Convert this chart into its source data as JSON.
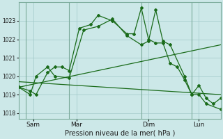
{
  "title": "Pression niveau de la mer( hPa )",
  "background_color": "#cce8e8",
  "grid_color": "#a0c8c8",
  "vline_color": "#7aaa9a",
  "line_color": "#1a6b1a",
  "ylim": [
    1017.7,
    1024.0
  ],
  "yticks": [
    1018,
    1019,
    1020,
    1021,
    1022,
    1023
  ],
  "xlim": [
    0,
    14
  ],
  "xtick_labels": [
    "Sam",
    "Mar",
    "Dim",
    "Lun"
  ],
  "xtick_positions": [
    1.0,
    4.0,
    9.0,
    12.5
  ],
  "vline_positions": [
    0.5,
    3.5,
    8.5,
    12.0
  ],
  "series1_x": [
    0.0,
    0.8,
    1.2,
    2.0,
    2.5,
    3.0,
    3.5,
    4.2,
    5.0,
    5.5,
    6.5,
    7.5,
    8.0,
    8.5,
    9.0,
    9.5,
    10.0,
    10.5,
    11.0,
    11.5,
    12.0,
    12.5,
    13.0,
    13.5,
    14.0
  ],
  "series1_y": [
    1019.4,
    1019.2,
    1019.0,
    1020.2,
    1020.5,
    1020.5,
    1020.3,
    1022.6,
    1022.8,
    1023.3,
    1023.0,
    1022.3,
    1022.3,
    1023.7,
    1022.0,
    1021.8,
    1021.8,
    1020.7,
    1020.5,
    1019.8,
    1019.0,
    1019.5,
    1018.8,
    1018.5,
    1018.8
  ],
  "series2_x": [
    0.0,
    0.8,
    1.2,
    2.0,
    2.5,
    3.5,
    4.5,
    5.5,
    6.5,
    7.5,
    8.5,
    9.0,
    9.5,
    10.0,
    10.5,
    11.5,
    12.0,
    12.5,
    13.0,
    14.0
  ],
  "series2_y": [
    1019.4,
    1019.0,
    1020.0,
    1020.5,
    1020.0,
    1019.9,
    1022.5,
    1022.7,
    1023.1,
    1022.2,
    1021.7,
    1021.9,
    1023.6,
    1021.9,
    1021.7,
    1020.0,
    1019.0,
    1019.0,
    1018.5,
    1018.2
  ],
  "trend1_x": [
    0.0,
    14.0
  ],
  "trend1_y": [
    1019.4,
    1021.7
  ],
  "trend2_x": [
    0.0,
    14.0
  ],
  "trend2_y": [
    1019.7,
    1019.0
  ]
}
